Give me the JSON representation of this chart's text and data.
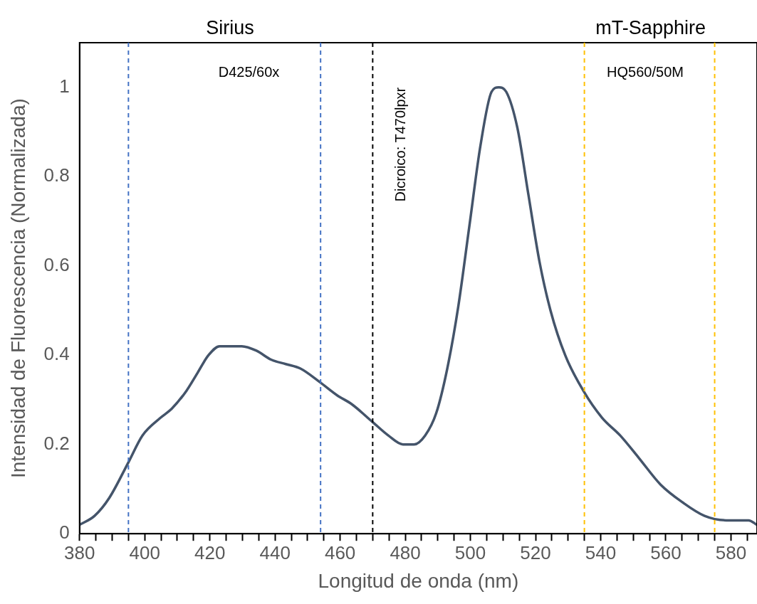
{
  "chart_data": {
    "type": "line",
    "xlabel": "Longitud de onda (nm)",
    "ylabel": "Intensidad de Fluorescencia (Normalizada)",
    "series": [
      {
        "color": "#44546a",
        "x": [
          380,
          384.6,
          389.1,
          395,
          399.3,
          404.9,
          408.3,
          412.8,
          416.2,
          419.6,
          423,
          426.4,
          429.8,
          434.3,
          438.8,
          443.3,
          447.8,
          453.7,
          459.1,
          463.6,
          470,
          474.8,
          479.3,
          482.7,
          486.1,
          489.5,
          492.9,
          496.3,
          499.7,
          503.1,
          506.5,
          508.7,
          511,
          514.4,
          517.8,
          521.2,
          524.6,
          529.1,
          534.7,
          540.4,
          546,
          551.7,
          558.4,
          565.2,
          571.9,
          578.6,
          585.4,
          588
        ],
        "values": [
          0.02,
          0.04,
          0.08,
          0.16,
          0.22,
          0.26,
          0.28,
          0.32,
          0.36,
          0.4,
          0.42,
          0.42,
          0.42,
          0.41,
          0.39,
          0.38,
          0.37,
          0.34,
          0.31,
          0.29,
          0.25,
          0.22,
          0.2,
          0.2,
          0.22,
          0.27,
          0.37,
          0.51,
          0.69,
          0.87,
          0.99,
          1,
          0.99,
          0.91,
          0.76,
          0.61,
          0.5,
          0.4,
          0.32,
          0.26,
          0.22,
          0.17,
          0.11,
          0.07,
          0.04,
          0.03,
          0.03,
          0.02
        ]
      }
    ],
    "xlim": [
      380,
      588
    ],
    "xticks": [
      380,
      {
        "value": 385,
        "label": null
      },
      {
        "value": 390,
        "label": null
      },
      {
        "value": 395,
        "label": null
      },
      400,
      {
        "value": 405,
        "label": null
      },
      {
        "value": 410,
        "label": null
      },
      {
        "value": 415,
        "label": null
      },
      420,
      {
        "value": 425,
        "label": null
      },
      {
        "value": 430,
        "label": null
      },
      {
        "value": 435,
        "label": null
      },
      440,
      {
        "value": 445,
        "label": null
      },
      {
        "value": 450,
        "label": null
      },
      {
        "value": 455,
        "label": null
      },
      460,
      {
        "value": 465,
        "label": null
      },
      {
        "value": 470,
        "label": null
      },
      {
        "value": 475,
        "label": null
      },
      480,
      {
        "value": 485,
        "label": null
      },
      {
        "value": 490,
        "label": null
      },
      {
        "value": 495,
        "label": null
      },
      500,
      {
        "value": 505,
        "label": null
      },
      {
        "value": 510,
        "label": null
      },
      {
        "value": 515,
        "label": null
      },
      520,
      {
        "value": 525,
        "label": null
      },
      {
        "value": 530,
        "label": null
      },
      {
        "value": 535,
        "label": null
      },
      540,
      {
        "value": 545,
        "label": null
      },
      {
        "value": 550,
        "label": null
      },
      {
        "value": 555,
        "label": null
      },
      560,
      {
        "value": 565,
        "label": null
      },
      {
        "value": 570,
        "label": null
      },
      {
        "value": 575,
        "label": null
      },
      580,
      {
        "value": 585,
        "label": null
      }
    ],
    "ylim": [
      0,
      1.1
    ],
    "yticks": [
      0,
      0.2,
      0.4,
      0.6,
      0.8,
      1
    ],
    "grid": false,
    "legend": false,
    "marker": "none",
    "line_style": "solid",
    "ref_lines": [
      {
        "axis": "x",
        "value": 395,
        "color": "#4472c4",
        "line_style": "dashed"
      },
      {
        "axis": "x",
        "value": 454,
        "color": "#4472c4",
        "line_style": "dashed"
      },
      {
        "axis": "x",
        "value": 470,
        "color": "#000000",
        "line_style": "dashed",
        "label": "Dicroico: T470lpxr"
      },
      {
        "axis": "x",
        "value": 535,
        "color": "#ffc000",
        "line_style": "dashed"
      },
      {
        "axis": "x",
        "value": 575,
        "color": "#ffc000",
        "line_style": "dashed"
      }
    ],
    "annotations": [
      "Sirius",
      "mT-Sapphire",
      "D425/60x",
      "HQ560/50M"
    ]
  }
}
